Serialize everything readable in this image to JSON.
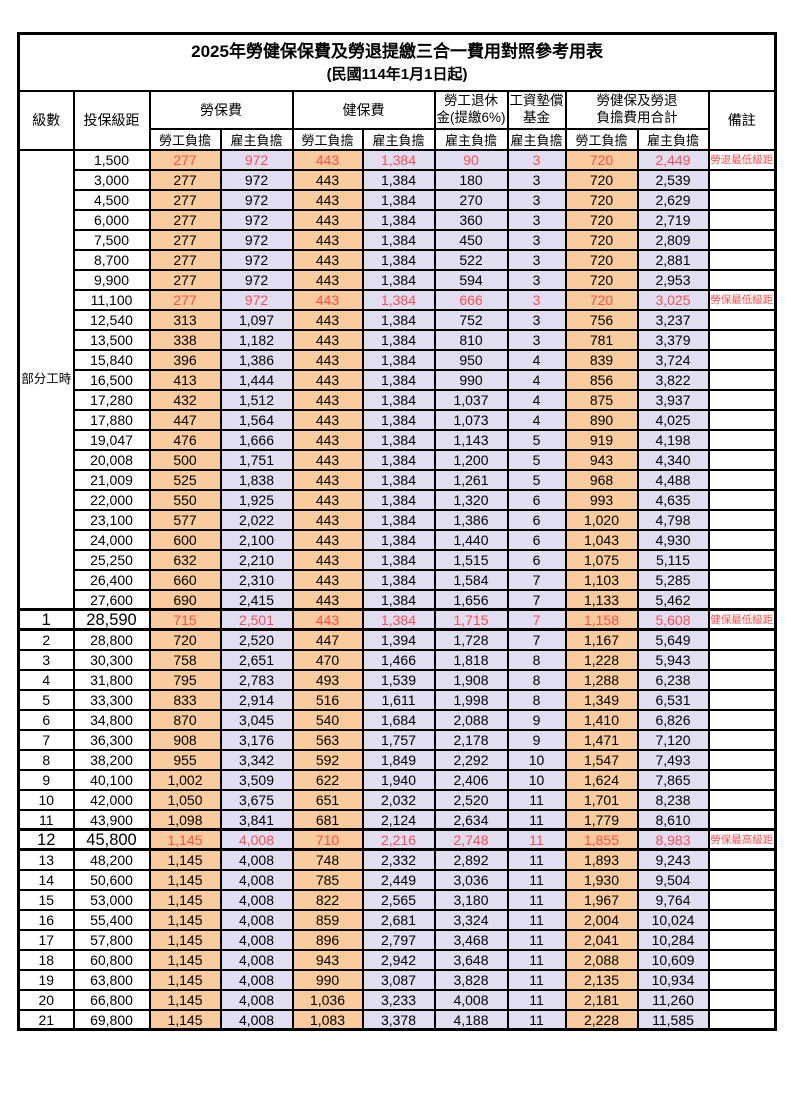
{
  "table": {
    "title": "2025年勞健保保費及勞退提繳三合一費用對照參考用表",
    "subtitle": "(民國114年1月1日起)",
    "header": {
      "grade": "級數",
      "bracket": "投保級距",
      "labor_fee": "勞保費",
      "health_fee": "健保費",
      "pension_line1": "勞工退休",
      "pension_line2": "金(提繳6%)",
      "wage_fund_line1": "工資墊償",
      "wage_fund_line2": "基金",
      "total_line1": "勞健保及勞退",
      "total_line2": "負擔費用合計",
      "remark": "備註",
      "employee": "勞工負擔",
      "employer": "雇主負擔"
    },
    "part_time_label": "部分工時",
    "colors": {
      "employee_bg": "#FACB9C",
      "employer_bg": "#E1DEF2",
      "highlight_text": "#FF4D4D",
      "remark_text": "#FF6666",
      "border": "#000000"
    },
    "rows": [
      {
        "grade": "",
        "bracket": "1,500",
        "values": [
          "277",
          "972",
          "443",
          "1,384",
          "90",
          "3",
          "720",
          "2,449"
        ],
        "remark": "勞退最低級距",
        "highlight": true,
        "key_row": false
      },
      {
        "grade": "",
        "bracket": "3,000",
        "values": [
          "277",
          "972",
          "443",
          "1,384",
          "180",
          "3",
          "720",
          "2,539"
        ],
        "remark": "",
        "highlight": false,
        "key_row": false
      },
      {
        "grade": "",
        "bracket": "4,500",
        "values": [
          "277",
          "972",
          "443",
          "1,384",
          "270",
          "3",
          "720",
          "2,629"
        ],
        "remark": "",
        "highlight": false,
        "key_row": false
      },
      {
        "grade": "",
        "bracket": "6,000",
        "values": [
          "277",
          "972",
          "443",
          "1,384",
          "360",
          "3",
          "720",
          "2,719"
        ],
        "remark": "",
        "highlight": false,
        "key_row": false
      },
      {
        "grade": "",
        "bracket": "7,500",
        "values": [
          "277",
          "972",
          "443",
          "1,384",
          "450",
          "3",
          "720",
          "2,809"
        ],
        "remark": "",
        "highlight": false,
        "key_row": false
      },
      {
        "grade": "",
        "bracket": "8,700",
        "values": [
          "277",
          "972",
          "443",
          "1,384",
          "522",
          "3",
          "720",
          "2,881"
        ],
        "remark": "",
        "highlight": false,
        "key_row": false
      },
      {
        "grade": "",
        "bracket": "9,900",
        "values": [
          "277",
          "972",
          "443",
          "1,384",
          "594",
          "3",
          "720",
          "2,953"
        ],
        "remark": "",
        "highlight": false,
        "key_row": false
      },
      {
        "grade": "",
        "bracket": "11,100",
        "values": [
          "277",
          "972",
          "443",
          "1,384",
          "666",
          "3",
          "720",
          "3,025"
        ],
        "remark": "勞保最低級距",
        "highlight": true,
        "key_row": false
      },
      {
        "grade": "",
        "bracket": "12,540",
        "values": [
          "313",
          "1,097",
          "443",
          "1,384",
          "752",
          "3",
          "756",
          "3,237"
        ],
        "remark": "",
        "highlight": false,
        "key_row": false
      },
      {
        "grade": "",
        "bracket": "13,500",
        "values": [
          "338",
          "1,182",
          "443",
          "1,384",
          "810",
          "3",
          "781",
          "3,379"
        ],
        "remark": "",
        "highlight": false,
        "key_row": false
      },
      {
        "grade": "",
        "bracket": "15,840",
        "values": [
          "396",
          "1,386",
          "443",
          "1,384",
          "950",
          "4",
          "839",
          "3,724"
        ],
        "remark": "",
        "highlight": false,
        "key_row": false
      },
      {
        "grade": "",
        "bracket": "16,500",
        "values": [
          "413",
          "1,444",
          "443",
          "1,384",
          "990",
          "4",
          "856",
          "3,822"
        ],
        "remark": "",
        "highlight": false,
        "key_row": false
      },
      {
        "grade": "",
        "bracket": "17,280",
        "values": [
          "432",
          "1,512",
          "443",
          "1,384",
          "1,037",
          "4",
          "875",
          "3,937"
        ],
        "remark": "",
        "highlight": false,
        "key_row": false
      },
      {
        "grade": "",
        "bracket": "17,880",
        "values": [
          "447",
          "1,564",
          "443",
          "1,384",
          "1,073",
          "4",
          "890",
          "4,025"
        ],
        "remark": "",
        "highlight": false,
        "key_row": false
      },
      {
        "grade": "",
        "bracket": "19,047",
        "values": [
          "476",
          "1,666",
          "443",
          "1,384",
          "1,143",
          "5",
          "919",
          "4,198"
        ],
        "remark": "",
        "highlight": false,
        "key_row": false
      },
      {
        "grade": "",
        "bracket": "20,008",
        "values": [
          "500",
          "1,751",
          "443",
          "1,384",
          "1,200",
          "5",
          "943",
          "4,340"
        ],
        "remark": "",
        "highlight": false,
        "key_row": false
      },
      {
        "grade": "",
        "bracket": "21,009",
        "values": [
          "525",
          "1,838",
          "443",
          "1,384",
          "1,261",
          "5",
          "968",
          "4,488"
        ],
        "remark": "",
        "highlight": false,
        "key_row": false
      },
      {
        "grade": "",
        "bracket": "22,000",
        "values": [
          "550",
          "1,925",
          "443",
          "1,384",
          "1,320",
          "6",
          "993",
          "4,635"
        ],
        "remark": "",
        "highlight": false,
        "key_row": false
      },
      {
        "grade": "",
        "bracket": "23,100",
        "values": [
          "577",
          "2,022",
          "443",
          "1,384",
          "1,386",
          "6",
          "1,020",
          "4,798"
        ],
        "remark": "",
        "highlight": false,
        "key_row": false
      },
      {
        "grade": "",
        "bracket": "24,000",
        "values": [
          "600",
          "2,100",
          "443",
          "1,384",
          "1,440",
          "6",
          "1,043",
          "4,930"
        ],
        "remark": "",
        "highlight": false,
        "key_row": false
      },
      {
        "grade": "",
        "bracket": "25,250",
        "values": [
          "632",
          "2,210",
          "443",
          "1,384",
          "1,515",
          "6",
          "1,075",
          "5,115"
        ],
        "remark": "",
        "highlight": false,
        "key_row": false
      },
      {
        "grade": "",
        "bracket": "26,400",
        "values": [
          "660",
          "2,310",
          "443",
          "1,384",
          "1,584",
          "7",
          "1,103",
          "5,285"
        ],
        "remark": "",
        "highlight": false,
        "key_row": false
      },
      {
        "grade": "",
        "bracket": "27,600",
        "values": [
          "690",
          "2,415",
          "443",
          "1,384",
          "1,656",
          "7",
          "1,133",
          "5,462"
        ],
        "remark": "",
        "highlight": false,
        "key_row": false
      },
      {
        "grade": "1",
        "bracket": "28,590",
        "values": [
          "715",
          "2,501",
          "443",
          "1,384",
          "1,715",
          "7",
          "1,158",
          "5,608"
        ],
        "remark": "健保最低級距",
        "highlight": true,
        "key_row": true
      },
      {
        "grade": "2",
        "bracket": "28,800",
        "values": [
          "720",
          "2,520",
          "447",
          "1,394",
          "1,728",
          "7",
          "1,167",
          "5,649"
        ],
        "remark": "",
        "highlight": false,
        "key_row": false
      },
      {
        "grade": "3",
        "bracket": "30,300",
        "values": [
          "758",
          "2,651",
          "470",
          "1,466",
          "1,818",
          "8",
          "1,228",
          "5,943"
        ],
        "remark": "",
        "highlight": false,
        "key_row": false
      },
      {
        "grade": "4",
        "bracket": "31,800",
        "values": [
          "795",
          "2,783",
          "493",
          "1,539",
          "1,908",
          "8",
          "1,288",
          "6,238"
        ],
        "remark": "",
        "highlight": false,
        "key_row": false
      },
      {
        "grade": "5",
        "bracket": "33,300",
        "values": [
          "833",
          "2,914",
          "516",
          "1,611",
          "1,998",
          "8",
          "1,349",
          "6,531"
        ],
        "remark": "",
        "highlight": false,
        "key_row": false
      },
      {
        "grade": "6",
        "bracket": "34,800",
        "values": [
          "870",
          "3,045",
          "540",
          "1,684",
          "2,088",
          "9",
          "1,410",
          "6,826"
        ],
        "remark": "",
        "highlight": false,
        "key_row": false
      },
      {
        "grade": "7",
        "bracket": "36,300",
        "values": [
          "908",
          "3,176",
          "563",
          "1,757",
          "2,178",
          "9",
          "1,471",
          "7,120"
        ],
        "remark": "",
        "highlight": false,
        "key_row": false
      },
      {
        "grade": "8",
        "bracket": "38,200",
        "values": [
          "955",
          "3,342",
          "592",
          "1,849",
          "2,292",
          "10",
          "1,547",
          "7,493"
        ],
        "remark": "",
        "highlight": false,
        "key_row": false
      },
      {
        "grade": "9",
        "bracket": "40,100",
        "values": [
          "1,002",
          "3,509",
          "622",
          "1,940",
          "2,406",
          "10",
          "1,624",
          "7,865"
        ],
        "remark": "",
        "highlight": false,
        "key_row": false
      },
      {
        "grade": "10",
        "bracket": "42,000",
        "values": [
          "1,050",
          "3,675",
          "651",
          "2,032",
          "2,520",
          "11",
          "1,701",
          "8,238"
        ],
        "remark": "",
        "highlight": false,
        "key_row": false
      },
      {
        "grade": "11",
        "bracket": "43,900",
        "values": [
          "1,098",
          "3,841",
          "681",
          "2,124",
          "2,634",
          "11",
          "1,779",
          "8,610"
        ],
        "remark": "",
        "highlight": false,
        "key_row": false
      },
      {
        "grade": "12",
        "bracket": "45,800",
        "values": [
          "1,145",
          "4,008",
          "710",
          "2,216",
          "2,748",
          "11",
          "1,855",
          "8,983"
        ],
        "remark": "勞保最高級距",
        "highlight": true,
        "key_row": true
      },
      {
        "grade": "13",
        "bracket": "48,200",
        "values": [
          "1,145",
          "4,008",
          "748",
          "2,332",
          "2,892",
          "11",
          "1,893",
          "9,243"
        ],
        "remark": "",
        "highlight": false,
        "key_row": false
      },
      {
        "grade": "14",
        "bracket": "50,600",
        "values": [
          "1,145",
          "4,008",
          "785",
          "2,449",
          "3,036",
          "11",
          "1,930",
          "9,504"
        ],
        "remark": "",
        "highlight": false,
        "key_row": false
      },
      {
        "grade": "15",
        "bracket": "53,000",
        "values": [
          "1,145",
          "4,008",
          "822",
          "2,565",
          "3,180",
          "11",
          "1,967",
          "9,764"
        ],
        "remark": "",
        "highlight": false,
        "key_row": false
      },
      {
        "grade": "16",
        "bracket": "55,400",
        "values": [
          "1,145",
          "4,008",
          "859",
          "2,681",
          "3,324",
          "11",
          "2,004",
          "10,024"
        ],
        "remark": "",
        "highlight": false,
        "key_row": false
      },
      {
        "grade": "17",
        "bracket": "57,800",
        "values": [
          "1,145",
          "4,008",
          "896",
          "2,797",
          "3,468",
          "11",
          "2,041",
          "10,284"
        ],
        "remark": "",
        "highlight": false,
        "key_row": false
      },
      {
        "grade": "18",
        "bracket": "60,800",
        "values": [
          "1,145",
          "4,008",
          "943",
          "2,942",
          "3,648",
          "11",
          "2,088",
          "10,609"
        ],
        "remark": "",
        "highlight": false,
        "key_row": false
      },
      {
        "grade": "19",
        "bracket": "63,800",
        "values": [
          "1,145",
          "4,008",
          "990",
          "3,087",
          "3,828",
          "11",
          "2,135",
          "10,934"
        ],
        "remark": "",
        "highlight": false,
        "key_row": false
      },
      {
        "grade": "20",
        "bracket": "66,800",
        "values": [
          "1,145",
          "4,008",
          "1,036",
          "3,233",
          "4,008",
          "11",
          "2,181",
          "11,260"
        ],
        "remark": "",
        "highlight": false,
        "key_row": false
      },
      {
        "grade": "21",
        "bracket": "69,800",
        "values": [
          "1,145",
          "4,008",
          "1,083",
          "3,378",
          "4,188",
          "11",
          "2,228",
          "11,585"
        ],
        "remark": "",
        "highlight": false,
        "key_row": false
      }
    ]
  }
}
